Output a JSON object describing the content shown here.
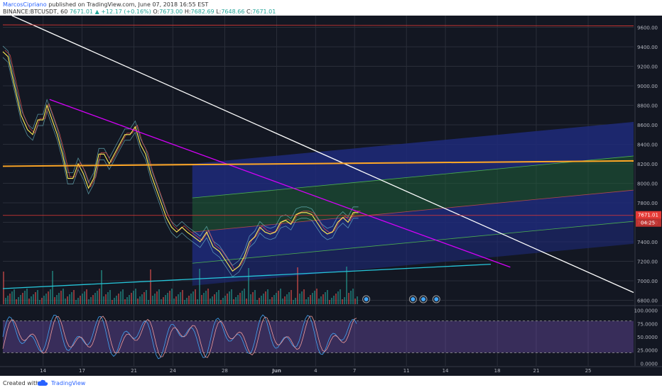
{
  "header": {
    "author": "MarcosCipriano",
    "published_text": "published on TradingView.com, June 07, 2018 16:55 EST",
    "symbol_line": "BINANCE:BTCUSDT, 60",
    "last": "7671.01",
    "change": "+12.17 (+0.16%)",
    "o_label": "O:",
    "o_value": "7673.00",
    "h_label": "H:",
    "h_value": "7682.69",
    "l_label": "L:",
    "l_value": "7648.66",
    "c_label": "C:",
    "c_value": "7671.01"
  },
  "footer": {
    "created_with": "Created with",
    "brand": "TradingView"
  },
  "colors": {
    "background": "#131722",
    "up": "#26a69a",
    "down": "#ef5350",
    "trend_white": "#ffffff",
    "trend_magenta": "#d500f9",
    "horizontal_orange": "#ffa726",
    "rsi_fill": "#7e57c2"
  },
  "chart_data": {
    "type": "line",
    "symbol": "BINANCE:BTCUSDT",
    "interval": "60",
    "price_axis": {
      "ticks": [
        "9600.00",
        "9400.00",
        "9200.00",
        "9000.00",
        "8800.00",
        "8600.00",
        "8400.00",
        "8200.00",
        "8000.00",
        "7800.00",
        "7600.00",
        "7400.00",
        "7200.00",
        "7000.00",
        "6800.00"
      ],
      "range": [
        6760,
        9720
      ]
    },
    "last_price_label": "7671.01",
    "countdown_label": "04:25",
    "time_axis": {
      "labels": [
        "14",
        "17",
        "21",
        "24",
        "28",
        "Jun",
        "4",
        "7",
        "11",
        "14",
        "18",
        "21",
        "25"
      ],
      "label_days": [
        14,
        17,
        21,
        24,
        28,
        32,
        35,
        38,
        42,
        45,
        49,
        52,
        56
      ],
      "range_days": [
        10.9,
        59.5
      ]
    },
    "price_path": {
      "x_days": [
        10.9,
        11.3,
        11.8,
        12.3,
        12.8,
        13.2,
        13.6,
        14.0,
        14.3,
        14.7,
        15.1,
        15.5,
        15.9,
        16.3,
        16.7,
        17.1,
        17.5,
        17.9,
        18.3,
        18.7,
        19.1,
        19.5,
        19.9,
        20.3,
        20.7,
        21.1,
        21.5,
        21.9,
        22.3,
        22.7,
        23.1,
        23.5,
        23.9,
        24.3,
        24.7,
        25.1,
        25.6,
        26.1,
        26.6,
        27.1,
        27.6,
        28.1,
        28.6,
        29.1,
        29.5,
        29.9,
        30.3,
        30.7,
        31.1,
        31.5,
        31.9,
        32.3,
        32.7,
        33.1,
        33.5,
        33.9,
        34.3,
        34.7,
        35.1,
        35.5,
        35.9,
        36.3,
        36.7,
        37.1,
        37.5,
        37.9,
        38.3
      ],
      "y": [
        9350,
        9300,
        9000,
        8700,
        8550,
        8500,
        8650,
        8650,
        8800,
        8650,
        8500,
        8300,
        8050,
        8050,
        8200,
        8100,
        7950,
        8050,
        8300,
        8300,
        8200,
        8300,
        8400,
        8500,
        8500,
        8580,
        8400,
        8300,
        8100,
        7950,
        7800,
        7650,
        7550,
        7500,
        7550,
        7500,
        7450,
        7400,
        7500,
        7350,
        7300,
        7200,
        7100,
        7150,
        7250,
        7400,
        7450,
        7550,
        7500,
        7480,
        7500,
        7600,
        7620,
        7580,
        7680,
        7700,
        7700,
        7680,
        7600,
        7520,
        7480,
        7500,
        7600,
        7650,
        7600,
        7700,
        7700
      ]
    },
    "annotations": [
      {
        "name": "white-downtrend-line",
        "x1": 11.6,
        "y1": 9720,
        "x2": 59.5,
        "y2": 6880,
        "color": "#ffffff"
      },
      {
        "name": "magenta-trend-line",
        "x1": 14.5,
        "y1": 8860,
        "x2": 50.0,
        "y2": 7140,
        "color": "#d500f9"
      },
      {
        "name": "orange-horizontal-level",
        "x1": 10.9,
        "y1": 8175,
        "x2": 59.5,
        "y2": 8230,
        "color": "#ffa726"
      },
      {
        "name": "cyan-support-line",
        "x1": 10.9,
        "y1": 6920,
        "x2": 48.5,
        "y2": 7170,
        "color": "#26c6da"
      },
      {
        "name": "red-resistance-level",
        "x1": 10.9,
        "y1": 9625,
        "x2": 59.5,
        "y2": 9615,
        "color": "#e53935"
      },
      {
        "name": "red-last-price-line",
        "x1": 10.9,
        "y1": 7671,
        "x2": 59.5,
        "y2": 7671,
        "color": "#e53935"
      }
    ],
    "channel": {
      "x_start": 25.5,
      "x_end": 59.5,
      "inner_bands": [
        [
          7800,
          8250
        ],
        [
          7400,
          7900
        ],
        [
          7100,
          7550
        ]
      ],
      "outer_bands": [
        [
          7800,
          8150,
          8500
        ],
        [
          7000,
          7350,
          7750
        ]
      ]
    },
    "rsi": {
      "ticks": [
        "100.0000",
        "75.0000",
        "50.0000",
        "25.0000",
        "0.0000"
      ],
      "levels": [
        80,
        20
      ],
      "range": [
        -5,
        105
      ]
    }
  }
}
